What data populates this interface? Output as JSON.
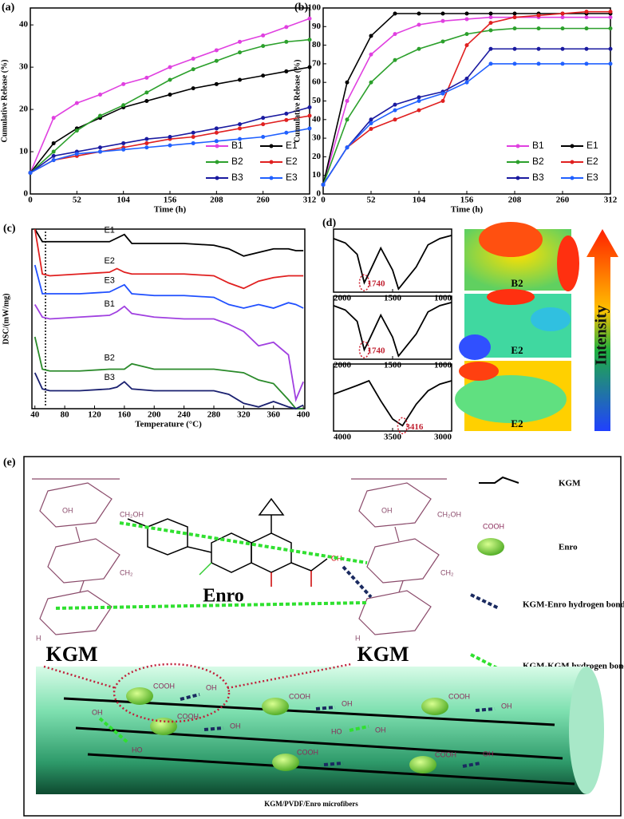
{
  "chart_data": [
    {
      "type": "line",
      "panel": "(a)",
      "xlabel": "Time (h)",
      "ylabel": "Cumulative Release (%)",
      "x": [
        0,
        26,
        52,
        78,
        104,
        130,
        156,
        182,
        208,
        234,
        260,
        286,
        312
      ],
      "xlim": [
        0,
        312
      ],
      "xticks": [
        0,
        52,
        104,
        156,
        208,
        260,
        312
      ],
      "ylim": [
        0,
        44
      ],
      "yticks": [
        0,
        10,
        20,
        30,
        40
      ],
      "legend": "lower right",
      "markers": true,
      "series": [
        {
          "name": "B1",
          "color": "#e040e0",
          "values": [
            5,
            18,
            21.5,
            23.5,
            26,
            27.5,
            30,
            32,
            34,
            36,
            37.5,
            39.5,
            41.5
          ]
        },
        {
          "name": "E1",
          "color": "#000000",
          "values": [
            5,
            12,
            15.5,
            18,
            20.5,
            22,
            23.5,
            25,
            26,
            27,
            28,
            29,
            30
          ]
        },
        {
          "name": "B2",
          "color": "#2ca02c",
          "values": [
            5,
            10,
            15,
            18.5,
            21,
            24,
            27,
            29.5,
            31.5,
            33.5,
            35,
            36,
            36.5
          ]
        },
        {
          "name": "E2",
          "color": "#e02020",
          "values": [
            5,
            8,
            9,
            10,
            11,
            12,
            13,
            13.5,
            14.5,
            15.5,
            16.5,
            17.5,
            18.5
          ]
        },
        {
          "name": "B3",
          "color": "#1a1aa0",
          "values": [
            5,
            9,
            10,
            11,
            12,
            13,
            13.5,
            14.5,
            15.5,
            16.5,
            18,
            19,
            20.5
          ]
        },
        {
          "name": "E3",
          "color": "#2060ff",
          "values": [
            5,
            8,
            9.5,
            10,
            10.5,
            11,
            11.5,
            12,
            12.5,
            13,
            13.5,
            14.5,
            15.5
          ]
        }
      ]
    },
    {
      "type": "line",
      "panel": "(b)",
      "xlabel": "Time (h)",
      "ylabel": "Cumulative Release (%)",
      "x": [
        0,
        26,
        52,
        78,
        104,
        130,
        156,
        182,
        208,
        234,
        260,
        286,
        312
      ],
      "xlim": [
        0,
        312
      ],
      "xticks": [
        0,
        52,
        104,
        156,
        208,
        260,
        312
      ],
      "ylim": [
        0,
        100
      ],
      "yticks": [
        0,
        10,
        20,
        30,
        40,
        50,
        60,
        70,
        80,
        90,
        100
      ],
      "legend": "lower right",
      "markers": true,
      "series": [
        {
          "name": "B1",
          "color": "#e040e0",
          "values": [
            5,
            50,
            75,
            86,
            91,
            93,
            94,
            95,
            95,
            95,
            95,
            95,
            95
          ]
        },
        {
          "name": "E1",
          "color": "#000000",
          "values": [
            5,
            60,
            85,
            97,
            97,
            97,
            97,
            97,
            97,
            97,
            97,
            97,
            97
          ]
        },
        {
          "name": "B2",
          "color": "#2ca02c",
          "values": [
            5,
            40,
            60,
            72,
            78,
            82,
            86,
            88,
            89,
            89,
            89,
            89,
            89
          ]
        },
        {
          "name": "E2",
          "color": "#e02020",
          "values": [
            5,
            25,
            35,
            40,
            45,
            50,
            80,
            92,
            95,
            96,
            97,
            98,
            98
          ]
        },
        {
          "name": "B3",
          "color": "#1a1aa0",
          "values": [
            5,
            25,
            40,
            48,
            52,
            55,
            62,
            78,
            78,
            78,
            78,
            78,
            78
          ]
        },
        {
          "name": "E3",
          "color": "#2060ff",
          "values": [
            5,
            25,
            38,
            45,
            50,
            54,
            60,
            70,
            70,
            70,
            70,
            70,
            70
          ]
        }
      ]
    },
    {
      "type": "line",
      "panel": "(c)",
      "xlabel": "Temperature (°C)",
      "ylabel": "DSC/(mW/mg)",
      "inline_labels": true,
      "x": [
        40,
        50,
        60,
        100,
        140,
        150,
        160,
        170,
        200,
        240,
        280,
        300,
        320,
        340,
        360,
        380,
        390,
        400
      ],
      "xlim": [
        36,
        402
      ],
      "xticks": [
        40,
        80,
        120,
        160,
        200,
        240,
        280,
        320,
        360,
        400
      ],
      "ylim": [
        0,
        100
      ],
      "series": [
        {
          "name": "E1",
          "color": "#000000",
          "values": [
            100,
            93,
            93,
            93,
            93,
            95,
            97,
            92,
            92,
            92,
            91,
            89,
            85,
            87,
            89,
            89,
            88,
            88
          ]
        },
        {
          "name": "E2",
          "color": "#e02020",
          "values": [
            100,
            75,
            74,
            75,
            76,
            78,
            76,
            75,
            75,
            75,
            74,
            70,
            67,
            71,
            73,
            74,
            74,
            74
          ]
        },
        {
          "name": "E3",
          "color": "#2050ff",
          "values": [
            80,
            64,
            64,
            64,
            65,
            67,
            69,
            64,
            63,
            63,
            62,
            58,
            56,
            58,
            56,
            59,
            58,
            56
          ]
        },
        {
          "name": "B1",
          "color": "#a040e0",
          "values": [
            58,
            51,
            50,
            51,
            52,
            54,
            57,
            53,
            51,
            50,
            50,
            47,
            43,
            35,
            37,
            30,
            5,
            15
          ]
        },
        {
          "name": "B2",
          "color": "#2a8a2a",
          "values": [
            40,
            22,
            21,
            21,
            22,
            22,
            22,
            25,
            22,
            22,
            22,
            21,
            20,
            16,
            14,
            5,
            0,
            0
          ]
        },
        {
          "name": "B3",
          "color": "#1a2070",
          "values": [
            20,
            11,
            10,
            10,
            11,
            12,
            15,
            11,
            10,
            10,
            10,
            8,
            3,
            1,
            4,
            1,
            0,
            2
          ]
        }
      ]
    },
    {
      "type": "line",
      "x": [
        2000,
        1900,
        1800,
        1740,
        1700,
        1600,
        1500,
        1450,
        1300,
        1200,
        1100,
        1000
      ],
      "xlim": [
        2000,
        1000
      ],
      "xticks": [
        2000,
        1500,
        1000
      ],
      "ylim": [
        0,
        100
      ],
      "annotations": [
        {
          "x": 1740,
          "text": "1740"
        }
      ],
      "series": [
        {
          "color": "#000000",
          "values": [
            85,
            78,
            60,
            15,
            30,
            70,
            35,
            5,
            40,
            75,
            85,
            90
          ]
        }
      ]
    },
    {
      "type": "line",
      "x": [
        2000,
        1900,
        1800,
        1740,
        1700,
        1600,
        1500,
        1450,
        1300,
        1200,
        1100,
        1000
      ],
      "xlim": [
        2000,
        1000
      ],
      "xticks": [
        2000,
        1500,
        1000
      ],
      "ylim": [
        0,
        100
      ],
      "annotations": [
        {
          "x": 1740,
          "text": "1740"
        }
      ],
      "series": [
        {
          "color": "#000000",
          "values": [
            85,
            78,
            60,
            15,
            30,
            70,
            35,
            5,
            40,
            75,
            85,
            90
          ]
        }
      ]
    },
    {
      "type": "line",
      "x": [
        4000,
        3800,
        3700,
        3600,
        3500,
        3416,
        3300,
        3200,
        3100,
        3000
      ],
      "xlim": [
        4000,
        3000
      ],
      "xticks": [
        4000,
        3500,
        3000
      ],
      "ylim": [
        0,
        100
      ],
      "annotations": [
        {
          "x": 3416,
          "text": "3416"
        }
      ],
      "series": [
        {
          "color": "#000000",
          "values": [
            55,
            68,
            75,
            45,
            18,
            8,
            40,
            60,
            70,
            75
          ]
        }
      ]
    }
  ],
  "panel_d": {
    "label": "(d)",
    "maps": [
      "B2",
      "E2",
      "E2"
    ],
    "scale_label": "Intensity"
  },
  "panel_e": {
    "label": "(e)",
    "legend": [
      "KGM",
      "Enro",
      "KGM-Enro hydrogen bond",
      "KGM-KGM hydrogen bond"
    ],
    "kgm": "KGM",
    "enro": "Enro",
    "cooh": "COOH",
    "oh": "OH",
    "ho": "HO",
    "ch2oh": "CH₂OH",
    "ch2": "CH₂",
    "h": "H",
    "caption": "KGM/PVDF/Enro microfibers"
  }
}
